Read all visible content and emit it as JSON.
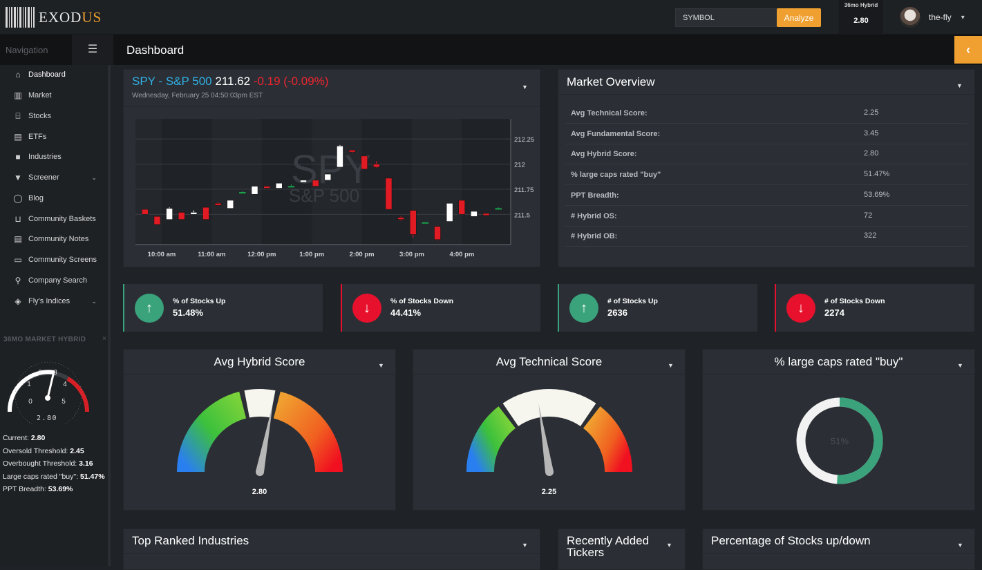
{
  "app": {
    "logo_prefix": "EXOD",
    "logo_suffix": "US"
  },
  "topbar": {
    "symbol_placeholder": "SYMBOL",
    "analyze_label": "Analyze",
    "hybrid_title": "36mo Hybrid",
    "hybrid_value": "2.80",
    "user_name": "the-fly"
  },
  "navbar": {
    "nav_label": "Navigation",
    "page_title": "Dashboard"
  },
  "sidebar": {
    "items": [
      {
        "label": "Dashboard",
        "icon": "home-icon",
        "glyph": "⌂"
      },
      {
        "label": "Market",
        "icon": "bar-chart-icon",
        "glyph": "▥"
      },
      {
        "label": "Stocks",
        "icon": "bank-icon",
        "glyph": "⌸"
      },
      {
        "label": "ETFs",
        "icon": "book-icon",
        "glyph": "▤"
      },
      {
        "label": "Industries",
        "icon": "truck-icon",
        "glyph": "■"
      },
      {
        "label": "Screener",
        "icon": "filter-icon",
        "glyph": "▼"
      },
      {
        "label": "Blog",
        "icon": "comment-icon",
        "glyph": "◯"
      },
      {
        "label": "Community Baskets",
        "icon": "cart-icon",
        "glyph": "⊔"
      },
      {
        "label": "Community Notes",
        "icon": "notes-icon",
        "glyph": "▤"
      },
      {
        "label": "Community Screens",
        "icon": "monitor-icon",
        "glyph": "▭"
      },
      {
        "label": "Company Search",
        "icon": "search-icon",
        "glyph": "⚲"
      },
      {
        "label": "Fly's Indices",
        "icon": "cubes-icon",
        "glyph": "◈"
      }
    ],
    "widget": {
      "title": "36MO MARKET HYBRID",
      "close": "×",
      "gauge_value": "2.80",
      "gauge_ticks": [
        "0",
        "1",
        "2",
        "3",
        "4",
        "5"
      ],
      "stats": [
        {
          "label": "Current: ",
          "value": "2.80"
        },
        {
          "label": "Oversold Threshold: ",
          "value": "2.45"
        },
        {
          "label": "Overbought Threshold: ",
          "value": "3.16"
        },
        {
          "label": "Large caps rated \"buy\": ",
          "value": "51.47%"
        },
        {
          "label": "PPT Breadth: ",
          "value": "53.69%"
        }
      ]
    }
  },
  "spy_panel": {
    "name": "SPY - S&P 500",
    "price": "211.62",
    "change": "-0.19 (-0.09%)",
    "date": "Wednesday, February 25 04:50:03pm EST",
    "watermark_symbol": "SPY",
    "watermark_name": "S&P 500"
  },
  "chart_data": {
    "type": "candlestick",
    "x_labels": [
      "10:00 am",
      "11:00 am",
      "12:00 pm",
      "1:00 pm",
      "2:00 pm",
      "3:00 pm",
      "4:00 pm"
    ],
    "y_labels": [
      "212.25",
      "212",
      "211.75",
      "211.5"
    ],
    "ylim": [
      211.2,
      212.45
    ],
    "colors": {
      "up": "#ffffff",
      "down": "#e01b24",
      "flat": "#1aa34a"
    },
    "candles": [
      {
        "o": 211.55,
        "c": 211.5,
        "h": 211.55,
        "l": 211.5
      },
      {
        "o": 211.48,
        "c": 211.4,
        "h": 211.48,
        "l": 211.4
      },
      {
        "o": 211.45,
        "c": 211.56,
        "h": 211.57,
        "l": 211.45
      },
      {
        "o": 211.52,
        "c": 211.45,
        "h": 211.52,
        "l": 211.45
      },
      {
        "o": 211.5,
        "c": 211.52,
        "h": 211.54,
        "l": 211.5
      },
      {
        "o": 211.57,
        "c": 211.45,
        "h": 211.57,
        "l": 211.45
      },
      {
        "o": 211.61,
        "c": 211.59,
        "h": 211.62,
        "l": 211.59
      },
      {
        "o": 211.56,
        "c": 211.64,
        "h": 211.64,
        "l": 211.56
      },
      {
        "o": 211.72,
        "c": 211.72,
        "h": 211.73,
        "l": 211.71
      },
      {
        "o": 211.7,
        "c": 211.78,
        "h": 211.78,
        "l": 211.7
      },
      {
        "o": 211.78,
        "c": 211.76,
        "h": 211.78,
        "l": 211.76
      },
      {
        "o": 211.76,
        "c": 211.81,
        "h": 211.81,
        "l": 211.76
      },
      {
        "o": 211.78,
        "c": 211.78,
        "h": 211.8,
        "l": 211.77
      },
      {
        "o": 211.82,
        "c": 211.84,
        "h": 211.84,
        "l": 211.82
      },
      {
        "o": 211.84,
        "c": 211.78,
        "h": 211.84,
        "l": 211.78
      },
      {
        "o": 211.84,
        "c": 211.9,
        "h": 211.9,
        "l": 211.84
      },
      {
        "o": 211.97,
        "c": 212.18,
        "h": 212.19,
        "l": 211.97
      },
      {
        "o": 212.14,
        "c": 212.12,
        "h": 212.14,
        "l": 212.11
      },
      {
        "o": 212.08,
        "c": 211.95,
        "h": 212.08,
        "l": 211.95
      },
      {
        "o": 212.0,
        "c": 211.97,
        "h": 212.03,
        "l": 211.96
      },
      {
        "o": 211.86,
        "c": 211.55,
        "h": 211.86,
        "l": 211.55
      },
      {
        "o": 211.47,
        "c": 211.45,
        "h": 211.48,
        "l": 211.44
      },
      {
        "o": 211.54,
        "c": 211.3,
        "h": 211.54,
        "l": 211.27
      },
      {
        "o": 211.42,
        "c": 211.42,
        "h": 211.42,
        "l": 211.41
      },
      {
        "o": 211.38,
        "c": 211.25,
        "h": 211.38,
        "l": 211.24
      },
      {
        "o": 211.43,
        "c": 211.61,
        "h": 211.61,
        "l": 211.43
      },
      {
        "o": 211.64,
        "c": 211.5,
        "h": 211.64,
        "l": 211.5
      },
      {
        "o": 211.48,
        "c": 211.53,
        "h": 211.53,
        "l": 211.48
      },
      {
        "o": 211.51,
        "c": 211.49,
        "h": 211.51,
        "l": 211.49
      },
      {
        "o": 211.56,
        "c": 211.56,
        "h": 211.57,
        "l": 211.55
      }
    ]
  },
  "market_overview": {
    "title": "Market Overview",
    "rows": [
      {
        "label": "Avg Technical Score:",
        "value": "2.25"
      },
      {
        "label": "Avg Fundamental Score:",
        "value": "3.45"
      },
      {
        "label": "Avg Hybrid Score:",
        "value": "2.80"
      },
      {
        "label": "% large caps rated \"buy\"",
        "value": "51.47%"
      },
      {
        "label": "PPT Breadth:",
        "value": "53.69%"
      },
      {
        "label": "# Hybrid OS:",
        "value": "72"
      },
      {
        "label": "# Hybrid OB:",
        "value": "322"
      }
    ]
  },
  "stat_boxes": [
    {
      "label": "% of Stocks Up",
      "value": "51.48%",
      "direction": "up",
      "icon": "arrow-up-icon",
      "glyph": "↑",
      "color": "#3aa37c"
    },
    {
      "label": "% of Stocks Down",
      "value": "44.41%",
      "direction": "down",
      "icon": "arrow-down-icon",
      "glyph": "↓",
      "color": "#e8112d"
    },
    {
      "label": "# of Stocks Up",
      "value": "2636",
      "direction": "up",
      "icon": "arrow-up-icon",
      "glyph": "↑",
      "color": "#3aa37c"
    },
    {
      "label": "# of Stocks Down",
      "value": "2274",
      "direction": "down",
      "icon": "arrow-down-icon",
      "glyph": "↓",
      "color": "#e8112d"
    }
  ],
  "gauges": [
    {
      "title": "Avg Hybrid Score",
      "value": "2.80",
      "fraction": 0.56
    },
    {
      "title": "Avg Technical Score",
      "value": "2.25",
      "fraction": 0.45
    }
  ],
  "donut": {
    "title": "% large caps rated \"buy\"",
    "label": "51%",
    "fraction": 0.51,
    "color": "#3aa37c"
  },
  "bottom_panels": {
    "industries_title": "Top Ranked Industries",
    "tickers_title_1": "Recently Added",
    "tickers_title_2": "Tickers",
    "updown_title": "Percentage of Stocks up/down"
  }
}
